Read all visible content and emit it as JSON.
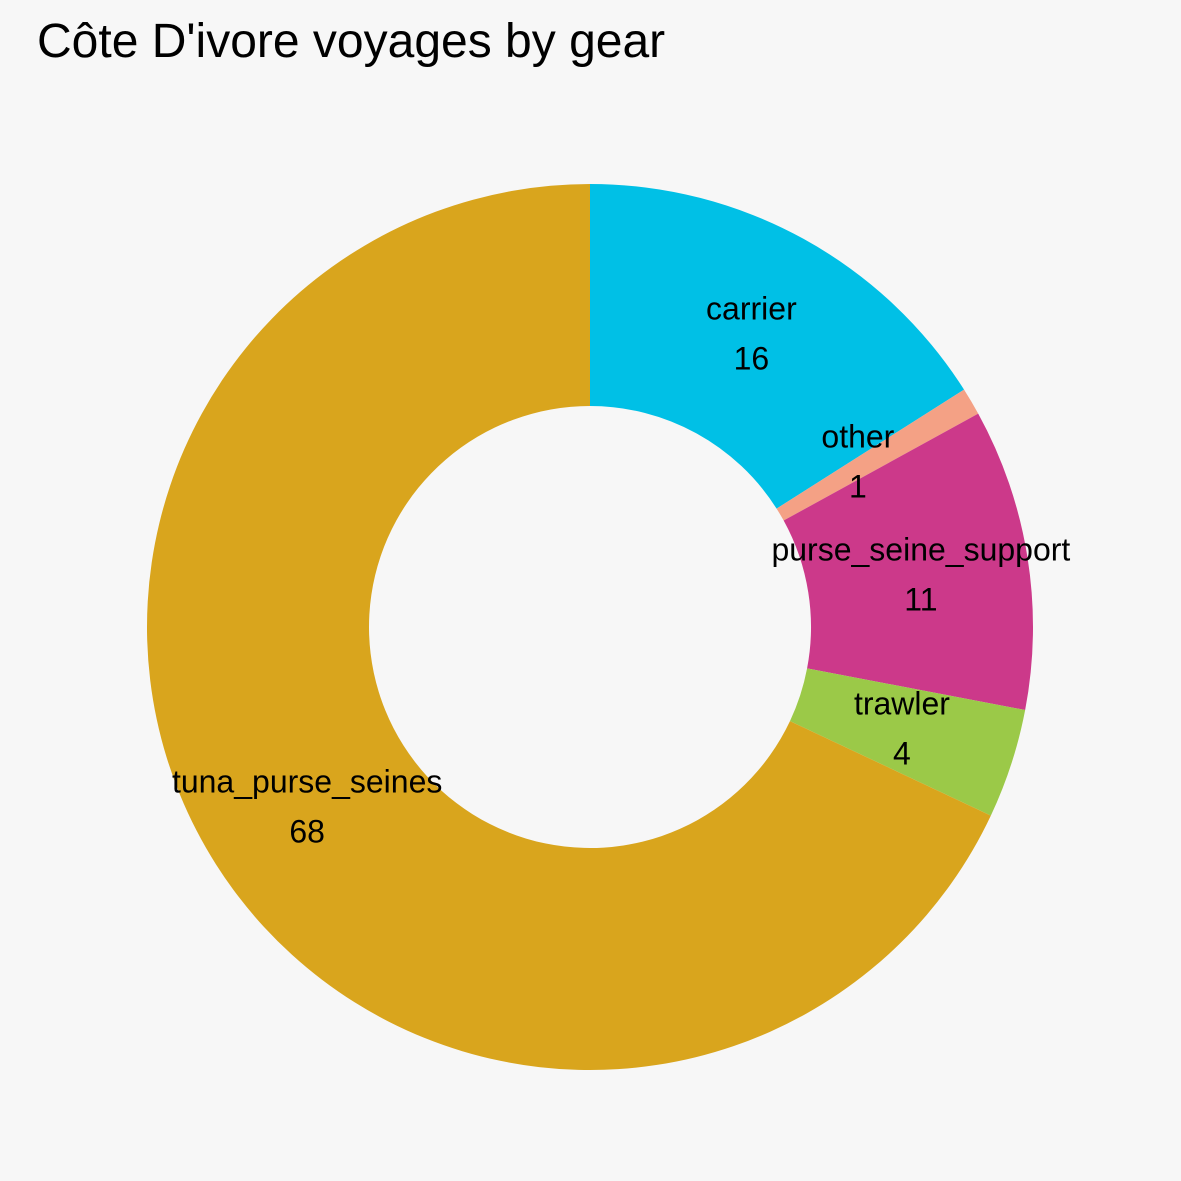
{
  "chart_data": {
    "type": "pie",
    "style": "donut",
    "title": "Côte D'ivore voyages by gear",
    "legend": "none",
    "slices": [
      {
        "label": "carrier",
        "value": 16,
        "color": "#00c0e6"
      },
      {
        "label": "other",
        "value": 1,
        "color": "#f4a185"
      },
      {
        "label": "purse_seine_support",
        "value": 11,
        "color": "#cc398a"
      },
      {
        "label": "trawler",
        "value": 4,
        "color": "#9bc948"
      },
      {
        "label": "tuna_purse_seines",
        "value": 68,
        "color": "#d9a51d"
      }
    ]
  }
}
